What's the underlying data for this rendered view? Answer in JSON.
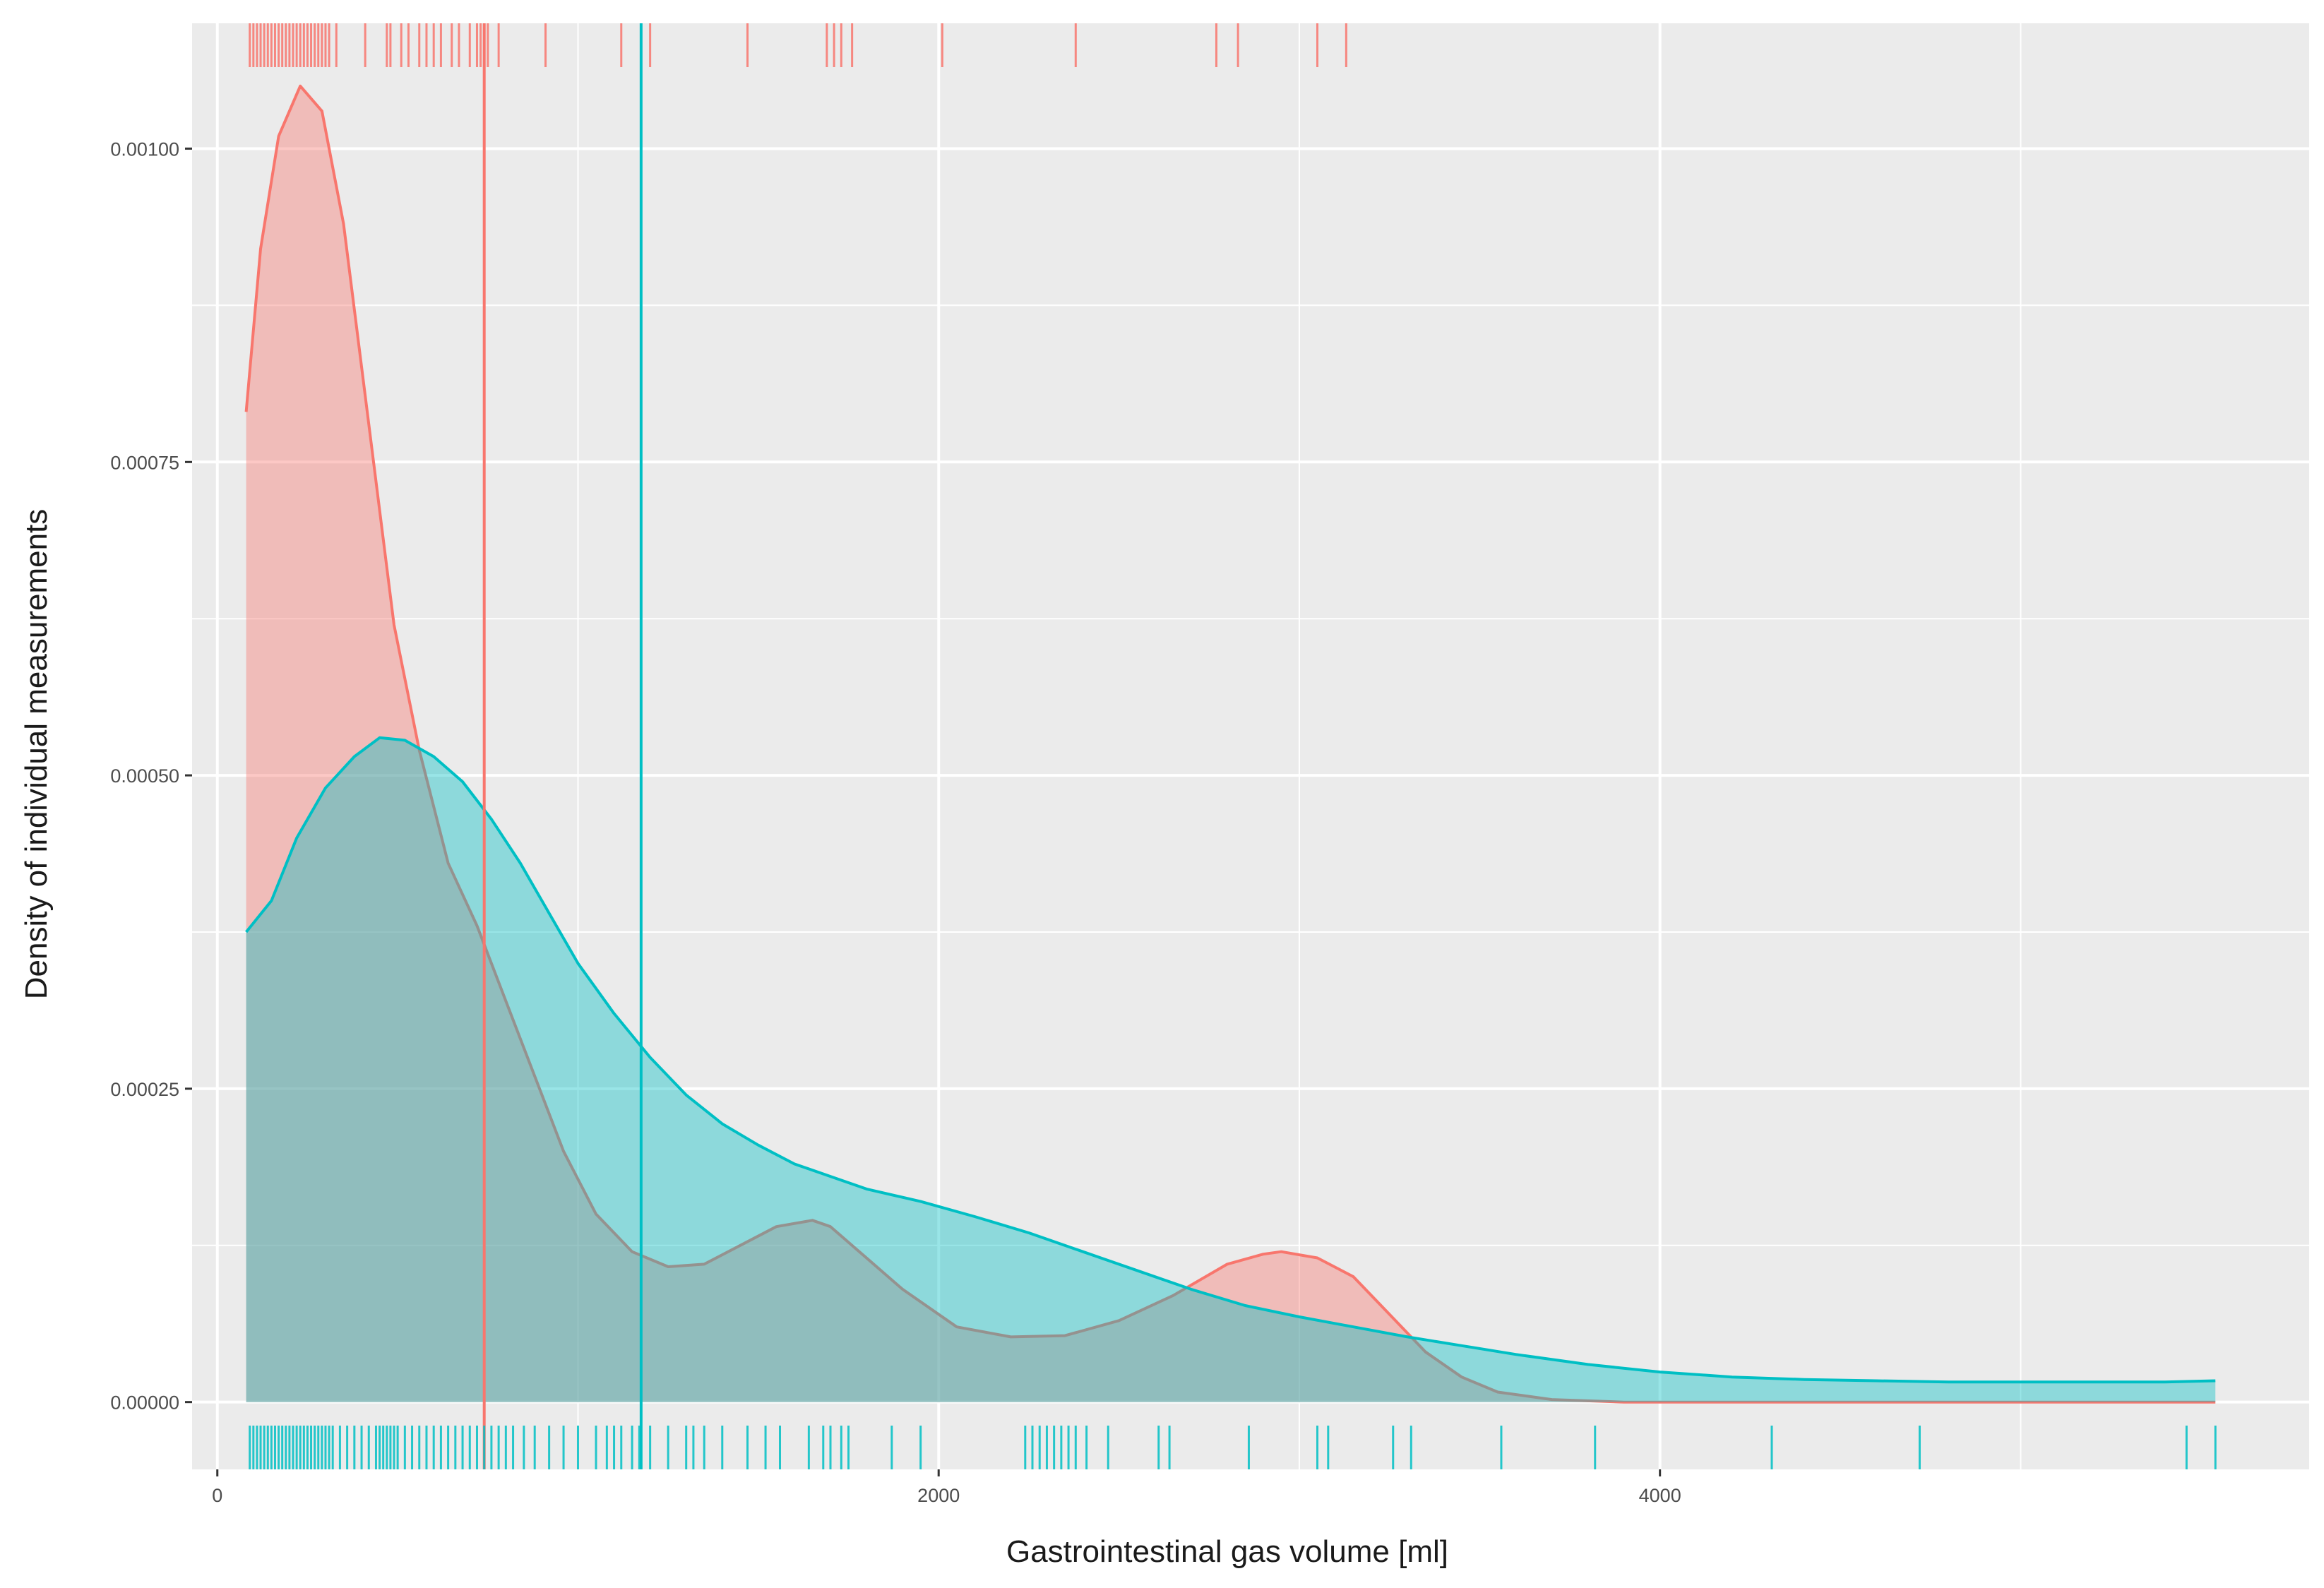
{
  "chart_data": {
    "type": "area",
    "title": "",
    "xlabel": "Gastrointestinal gas volume [ml]",
    "ylabel": "Density of individual measurements",
    "xlim": [
      -70,
      5800
    ],
    "ylim": [
      -5.37e-05,
      0.0011
    ],
    "x_ticks": [
      0,
      2000,
      4000
    ],
    "x_tick_labels": [
      "0",
      "2000",
      "4000"
    ],
    "y_ticks": [
      0,
      0.00025,
      0.0005,
      0.00075,
      0.001
    ],
    "y_tick_labels": [
      "0.00000",
      "0.00025",
      "0.00050",
      "0.00075",
      "0.00100"
    ],
    "grid": true,
    "legend": "none",
    "colors": {
      "panel_background": "#ebebeb",
      "grid": "#ffffff",
      "group_1": "#f8766d",
      "group_2": "#00bfc4"
    },
    "series": [
      {
        "color": "#f8766d",
        "x": [
          80,
          120,
          170,
          230,
          290,
          350,
          420,
          490,
          560,
          640,
          720,
          800,
          880,
          960,
          1050,
          1150,
          1250,
          1350,
          1450,
          1550,
          1650,
          1700,
          1780,
          1900,
          2050,
          2200,
          2350,
          2500,
          2650,
          2800,
          2900,
          2950,
          3050,
          3150,
          3250,
          3350,
          3450,
          3550,
          3700,
          3900,
          4200,
          4600,
          5000,
          5400,
          5540
        ],
        "y": [
          0.00079,
          0.00092,
          0.00101,
          0.00105,
          0.00103,
          0.00094,
          0.00078,
          0.00062,
          0.00052,
          0.00043,
          0.00038,
          0.00032,
          0.00026,
          0.0002,
          0.00015,
          0.00012,
          0.000108,
          0.00011,
          0.000125,
          0.00014,
          0.000145,
          0.00014,
          0.00012,
          9e-05,
          6e-05,
          5.2e-05,
          5.3e-05,
          6.5e-05,
          8.5e-05,
          0.00011,
          0.000118,
          0.00012,
          0.000115,
          0.0001,
          7e-05,
          4e-05,
          2e-05,
          8e-06,
          2e-06,
          0,
          0,
          0,
          0,
          0,
          0
        ]
      },
      {
        "color": "#00bfc4",
        "x": [
          80,
          150,
          220,
          300,
          380,
          450,
          520,
          600,
          680,
          760,
          840,
          920,
          1000,
          1100,
          1200,
          1300,
          1400,
          1500,
          1600,
          1700,
          1800,
          1950,
          2100,
          2250,
          2400,
          2550,
          2700,
          2850,
          3000,
          3150,
          3300,
          3450,
          3600,
          3800,
          4000,
          4200,
          4400,
          4600,
          4800,
          5000,
          5200,
          5400,
          5540
        ],
        "y": [
          0.000375,
          0.0004,
          0.00045,
          0.00049,
          0.000515,
          0.00053,
          0.000528,
          0.000515,
          0.000495,
          0.000465,
          0.00043,
          0.00039,
          0.00035,
          0.00031,
          0.000275,
          0.000245,
          0.000222,
          0.000205,
          0.00019,
          0.00018,
          0.00017,
          0.00016,
          0.000148,
          0.000135,
          0.00012,
          0.000105,
          9e-05,
          7.7e-05,
          6.8e-05,
          6e-05,
          5.2e-05,
          4.5e-05,
          3.8e-05,
          3e-05,
          2.4e-05,
          2e-05,
          1.8e-05,
          1.7e-05,
          1.6e-05,
          1.6e-05,
          1.6e-05,
          1.6e-05,
          1.7e-05
        ]
      }
    ],
    "vertical_lines": [
      {
        "x": 740,
        "color": "#f8766d"
      },
      {
        "x": 1175,
        "color": "#00bfc4"
      }
    ],
    "rug_top": {
      "color": "#f8766d",
      "x": [
        90,
        100,
        110,
        120,
        130,
        140,
        150,
        160,
        170,
        180,
        190,
        200,
        210,
        220,
        230,
        240,
        250,
        260,
        270,
        280,
        290,
        300,
        310,
        330,
        410,
        470,
        480,
        510,
        530,
        560,
        580,
        600,
        620,
        650,
        670,
        700,
        720,
        730,
        750,
        780,
        910,
        1120,
        1200,
        1470,
        1690,
        1710,
        1730,
        1760,
        2010,
        2380,
        2770,
        2830,
        3050,
        3130
      ]
    },
    "rug_bottom": {
      "color": "#00bfc4",
      "x": [
        90,
        100,
        110,
        120,
        130,
        140,
        150,
        160,
        170,
        180,
        190,
        200,
        210,
        220,
        230,
        240,
        250,
        260,
        270,
        280,
        290,
        300,
        310,
        320,
        340,
        360,
        380,
        400,
        420,
        440,
        450,
        460,
        470,
        480,
        490,
        500,
        520,
        540,
        560,
        580,
        600,
        620,
        640,
        660,
        680,
        700,
        720,
        740,
        760,
        780,
        800,
        820,
        850,
        880,
        920,
        960,
        1000,
        1050,
        1080,
        1100,
        1120,
        1150,
        1170,
        1200,
        1250,
        1300,
        1320,
        1350,
        1400,
        1470,
        1520,
        1560,
        1640,
        1680,
        1700,
        1730,
        1750,
        1870,
        1950,
        2240,
        2260,
        2280,
        2300,
        2320,
        2340,
        2360,
        2380,
        2410,
        2470,
        2610,
        2640,
        2860,
        3050,
        3080,
        3260,
        3310,
        3560,
        3820,
        4310,
        4720,
        5460,
        5540
      ]
    }
  }
}
